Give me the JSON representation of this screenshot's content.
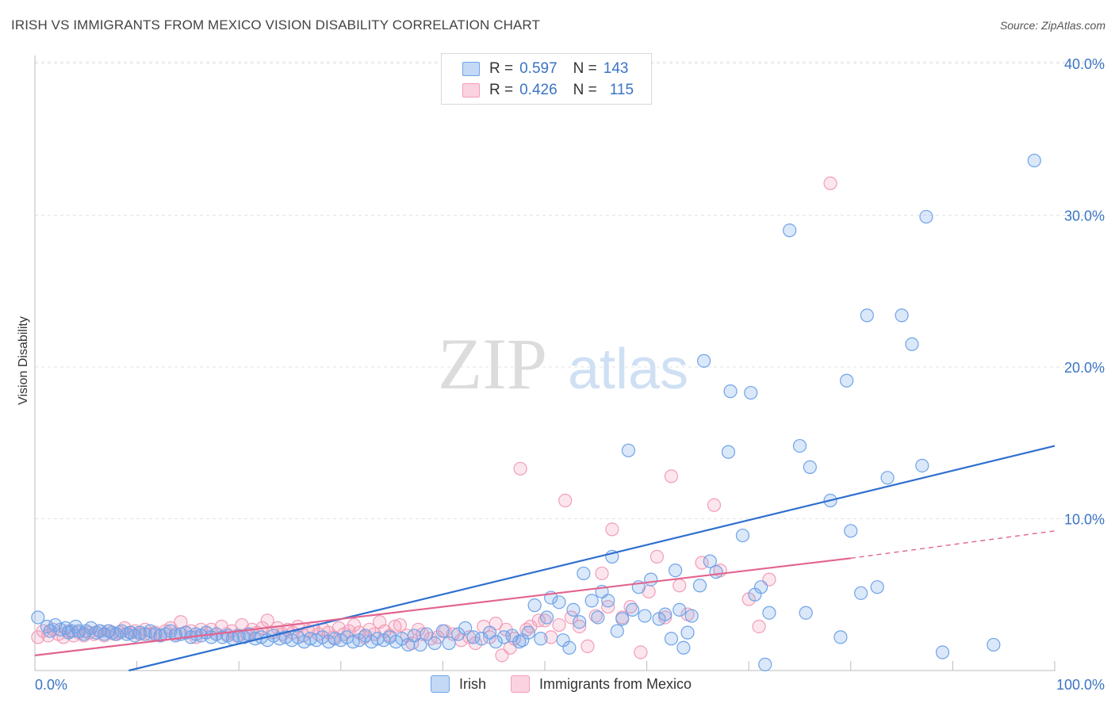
{
  "title": "IRISH VS IMMIGRANTS FROM MEXICO VISION DISABILITY CORRELATION CHART",
  "source": "Source: ZipAtlas.com",
  "watermark": {
    "zip": "ZIP",
    "atlas": "atlas"
  },
  "legend": {
    "irish": {
      "r_label": "R =",
      "r_value": "0.597",
      "n_label": "N =",
      "n_value": "143"
    },
    "mexico": {
      "r_label": "R =",
      "r_value": "0.426",
      "n_label": "N =",
      "n_value": "115"
    }
  },
  "chart_data": {
    "type": "scatter",
    "ylabel": "Vision Disability",
    "xlim": [
      0,
      100
    ],
    "ylim": [
      0,
      40
    ],
    "x_tick_labels": [
      "0.0%",
      "100.0%"
    ],
    "y_ticks": [
      10,
      20,
      30,
      40
    ],
    "y_tick_labels": [
      "10.0%",
      "20.0%",
      "30.0%",
      "40.0%"
    ],
    "colors": {
      "irish": "#6fa3e8",
      "mexico": "#f29db8",
      "irish_line": "#2f6fcf",
      "mexico_line": "#e2648f",
      "tick_label": "#3a74c4"
    },
    "series": [
      {
        "name": "Irish",
        "trend": {
          "x0": 0,
          "y0": -1.5,
          "x1": 100,
          "y1": 14.8
        },
        "points": [
          [
            0.3,
            3.5
          ],
          [
            1.2,
            2.9
          ],
          [
            1.5,
            2.6
          ],
          [
            2,
            3
          ],
          [
            2.5,
            2.7
          ],
          [
            3,
            2.8
          ],
          [
            3.3,
            2.5
          ],
          [
            3.6,
            2.6
          ],
          [
            4,
            2.9
          ],
          [
            4.3,
            2.6
          ],
          [
            4.8,
            2.4
          ],
          [
            5,
            2.6
          ],
          [
            5.5,
            2.8
          ],
          [
            6,
            2.5
          ],
          [
            6.4,
            2.6
          ],
          [
            6.8,
            2.4
          ],
          [
            7.2,
            2.6
          ],
          [
            7.6,
            2.5
          ],
          [
            8,
            2.4
          ],
          [
            8.5,
            2.6
          ],
          [
            9,
            2.4
          ],
          [
            9.4,
            2.5
          ],
          [
            9.8,
            2.3
          ],
          [
            10.3,
            2.5
          ],
          [
            10.8,
            2.4
          ],
          [
            11.3,
            2.6
          ],
          [
            11.8,
            2.4
          ],
          [
            12.3,
            2.3
          ],
          [
            12.8,
            2.4
          ],
          [
            13.3,
            2.6
          ],
          [
            13.8,
            2.3
          ],
          [
            14.3,
            2.4
          ],
          [
            14.8,
            2.5
          ],
          [
            15.3,
            2.2
          ],
          [
            15.8,
            2.4
          ],
          [
            16.3,
            2.3
          ],
          [
            16.8,
            2.5
          ],
          [
            17.3,
            2.2
          ],
          [
            17.8,
            2.4
          ],
          [
            18.4,
            2.2
          ],
          [
            18.9,
            2.3
          ],
          [
            19.4,
            2.1
          ],
          [
            20,
            2.3
          ],
          [
            20.5,
            2.2
          ],
          [
            21,
            2.4
          ],
          [
            21.6,
            2.1
          ],
          [
            22.2,
            2.2
          ],
          [
            22.8,
            2.0
          ],
          [
            23.4,
            2.3
          ],
          [
            24,
            2.1
          ],
          [
            24.6,
            2.2
          ],
          [
            25.2,
            2.0
          ],
          [
            25.8,
            2.2
          ],
          [
            26.4,
            1.9
          ],
          [
            27,
            2.1
          ],
          [
            27.6,
            2.0
          ],
          [
            28.2,
            2.2
          ],
          [
            28.8,
            1.9
          ],
          [
            29.4,
            2.1
          ],
          [
            30,
            2.0
          ],
          [
            30.6,
            2.2
          ],
          [
            31.2,
            1.9
          ],
          [
            31.8,
            2.0
          ],
          [
            32.4,
            2.3
          ],
          [
            33,
            1.9
          ],
          [
            33.6,
            2.1
          ],
          [
            34.2,
            2.0
          ],
          [
            34.8,
            2.2
          ],
          [
            35.4,
            1.9
          ],
          [
            36,
            2.1
          ],
          [
            36.6,
            1.7
          ],
          [
            37.2,
            2.3
          ],
          [
            37.8,
            1.7
          ],
          [
            38.4,
            2.4
          ],
          [
            39.2,
            1.8
          ],
          [
            40,
            2.6
          ],
          [
            40.6,
            1.8
          ],
          [
            41.5,
            2.4
          ],
          [
            42.2,
            2.8
          ],
          [
            43,
            2.2
          ],
          [
            43.8,
            2.1
          ],
          [
            44.6,
            2.5
          ],
          [
            45.2,
            1.9
          ],
          [
            46,
            2.2
          ],
          [
            46.8,
            2.3
          ],
          [
            47.5,
            1.9
          ],
          [
            47.8,
            2.0
          ],
          [
            48.4,
            2.5
          ],
          [
            49,
            4.3
          ],
          [
            49.6,
            2.1
          ],
          [
            50.2,
            3.5
          ],
          [
            50.6,
            4.8
          ],
          [
            51.4,
            4.5
          ],
          [
            51.8,
            2.0
          ],
          [
            52.4,
            1.5
          ],
          [
            52.8,
            4.0
          ],
          [
            53.4,
            3.2
          ],
          [
            53.8,
            6.4
          ],
          [
            54.6,
            4.6
          ],
          [
            55.2,
            3.5
          ],
          [
            55.6,
            5.2
          ],
          [
            56.2,
            4.6
          ],
          [
            56.6,
            7.5
          ],
          [
            57.1,
            2.6
          ],
          [
            57.6,
            3.4
          ],
          [
            58.2,
            14.5
          ],
          [
            58.6,
            4.0
          ],
          [
            59.2,
            5.5
          ],
          [
            59.8,
            3.6
          ],
          [
            60.4,
            6.0
          ],
          [
            61.2,
            3.4
          ],
          [
            61.8,
            3.7
          ],
          [
            62.4,
            2.1
          ],
          [
            62.8,
            6.6
          ],
          [
            63.2,
            4.0
          ],
          [
            63.6,
            1.5
          ],
          [
            64,
            2.5
          ],
          [
            64.4,
            3.6
          ],
          [
            65.2,
            5.6
          ],
          [
            65.6,
            20.4
          ],
          [
            66.2,
            7.2
          ],
          [
            66.8,
            6.5
          ],
          [
            68,
            14.4
          ],
          [
            68.2,
            18.4
          ],
          [
            69.4,
            8.9
          ],
          [
            70.2,
            18.3
          ],
          [
            70.6,
            5.0
          ],
          [
            71.2,
            5.5
          ],
          [
            71.6,
            0.4
          ],
          [
            72,
            3.8
          ],
          [
            74,
            29.0
          ],
          [
            75,
            14.8
          ],
          [
            75.6,
            3.8
          ],
          [
            76,
            13.4
          ],
          [
            78,
            11.2
          ],
          [
            79,
            2.2
          ],
          [
            79.6,
            19.1
          ],
          [
            80,
            9.2
          ],
          [
            81,
            5.1
          ],
          [
            81.6,
            23.4
          ],
          [
            82.6,
            5.5
          ],
          [
            83.6,
            12.7
          ],
          [
            85,
            23.4
          ],
          [
            86,
            21.5
          ],
          [
            87,
            13.5
          ],
          [
            87.4,
            29.9
          ],
          [
            89,
            1.2
          ],
          [
            94,
            1.7
          ],
          [
            98,
            33.6
          ]
        ]
      },
      {
        "name": "Immigrants from Mexico",
        "trend": {
          "x0": 0,
          "y0": 1.0,
          "x1": 80,
          "y1": 7.4,
          "dash_x1": 100,
          "y_dash1": 9.2
        },
        "points": [
          [
            0.3,
            2.2
          ],
          [
            0.8,
            2.6
          ],
          [
            1.3,
            2.3
          ],
          [
            1.8,
            2.7
          ],
          [
            2.3,
            2.4
          ],
          [
            2.8,
            2.2
          ],
          [
            3.3,
            2.6
          ],
          [
            3.8,
            2.3
          ],
          [
            4.3,
            2.5
          ],
          [
            4.8,
            2.3
          ],
          [
            5.3,
            2.5
          ],
          [
            5.8,
            2.4
          ],
          [
            6.3,
            2.6
          ],
          [
            6.8,
            2.3
          ],
          [
            7.3,
            2.6
          ],
          [
            7.8,
            2.4
          ],
          [
            8.3,
            2.5
          ],
          [
            8.8,
            2.8
          ],
          [
            9.3,
            2.5
          ],
          [
            9.8,
            2.6
          ],
          [
            10.3,
            2.4
          ],
          [
            10.8,
            2.7
          ],
          [
            11.3,
            2.4
          ],
          [
            11.8,
            2.5
          ],
          [
            12.3,
            2.3
          ],
          [
            12.8,
            2.6
          ],
          [
            13.3,
            2.8
          ],
          [
            13.8,
            2.4
          ],
          [
            14.3,
            3.2
          ],
          [
            14.8,
            2.5
          ],
          [
            15.3,
            2.6
          ],
          [
            15.8,
            2.2
          ],
          [
            16.3,
            2.7
          ],
          [
            16.8,
            2.5
          ],
          [
            17.3,
            2.7
          ],
          [
            17.8,
            2.4
          ],
          [
            18.3,
            2.9
          ],
          [
            18.8,
            2.4
          ],
          [
            19.3,
            2.6
          ],
          [
            19.8,
            2.3
          ],
          [
            20.3,
            3.0
          ],
          [
            20.8,
            2.4
          ],
          [
            21.3,
            2.7
          ],
          [
            21.8,
            2.5
          ],
          [
            22.3,
            2.8
          ],
          [
            22.8,
            3.3
          ],
          [
            23.3,
            2.5
          ],
          [
            23.8,
            2.8
          ],
          [
            24.3,
            2.4
          ],
          [
            24.8,
            2.7
          ],
          [
            25.3,
            2.5
          ],
          [
            25.8,
            2.9
          ],
          [
            26.3,
            2.3
          ],
          [
            26.8,
            2.6
          ],
          [
            27.3,
            2.8
          ],
          [
            27.8,
            2.4
          ],
          [
            28.3,
            2.7
          ],
          [
            28.8,
            2.5
          ],
          [
            29.3,
            2.2
          ],
          [
            29.8,
            2.8
          ],
          [
            30.3,
            2.4
          ],
          [
            30.8,
            2.6
          ],
          [
            31.3,
            3.0
          ],
          [
            31.8,
            2.5
          ],
          [
            32.3,
            2.2
          ],
          [
            32.8,
            2.7
          ],
          [
            33.3,
            2.4
          ],
          [
            33.8,
            3.2
          ],
          [
            34.3,
            2.6
          ],
          [
            34.8,
            2.3
          ],
          [
            35.3,
            2.9
          ],
          [
            35.8,
            3.0
          ],
          [
            36.5,
            2.3
          ],
          [
            37,
            1.8
          ],
          [
            37.6,
            2.7
          ],
          [
            38,
            2.4
          ],
          [
            38.8,
            2.1
          ],
          [
            39.5,
            2.2
          ],
          [
            40.2,
            2.6
          ],
          [
            41,
            2.4
          ],
          [
            41.8,
            2.0
          ],
          [
            42.6,
            2.2
          ],
          [
            43.2,
            1.8
          ],
          [
            44,
            2.9
          ],
          [
            44.6,
            2.2
          ],
          [
            45.2,
            3.1
          ],
          [
            45.8,
            1.0
          ],
          [
            46.2,
            2.7
          ],
          [
            46.6,
            1.5
          ],
          [
            47,
            2.1
          ],
          [
            47.6,
            13.3
          ],
          [
            48.2,
            2.7
          ],
          [
            48.6,
            2.9
          ],
          [
            49.4,
            3.3
          ],
          [
            50,
            3.3
          ],
          [
            50.6,
            2.2
          ],
          [
            51.4,
            3.0
          ],
          [
            52,
            11.2
          ],
          [
            52.6,
            3.5
          ],
          [
            53.4,
            2.9
          ],
          [
            54.2,
            1.6
          ],
          [
            55,
            3.6
          ],
          [
            55.6,
            6.4
          ],
          [
            56.2,
            4.2
          ],
          [
            56.6,
            9.3
          ],
          [
            57.6,
            3.5
          ],
          [
            58.4,
            4.2
          ],
          [
            59.4,
            1.2
          ],
          [
            60.2,
            5.2
          ],
          [
            61,
            7.5
          ],
          [
            61.8,
            3.5
          ],
          [
            62.4,
            12.8
          ],
          [
            63.2,
            5.6
          ],
          [
            64,
            3.7
          ],
          [
            65.4,
            7.1
          ],
          [
            66.6,
            10.9
          ],
          [
            67.2,
            6.6
          ],
          [
            70,
            4.7
          ],
          [
            71,
            2.9
          ],
          [
            72,
            6.0
          ],
          [
            78,
            32.1
          ]
        ]
      }
    ]
  },
  "bottom_legend": {
    "irish": "Irish",
    "mexico": "Immigrants from Mexico"
  }
}
